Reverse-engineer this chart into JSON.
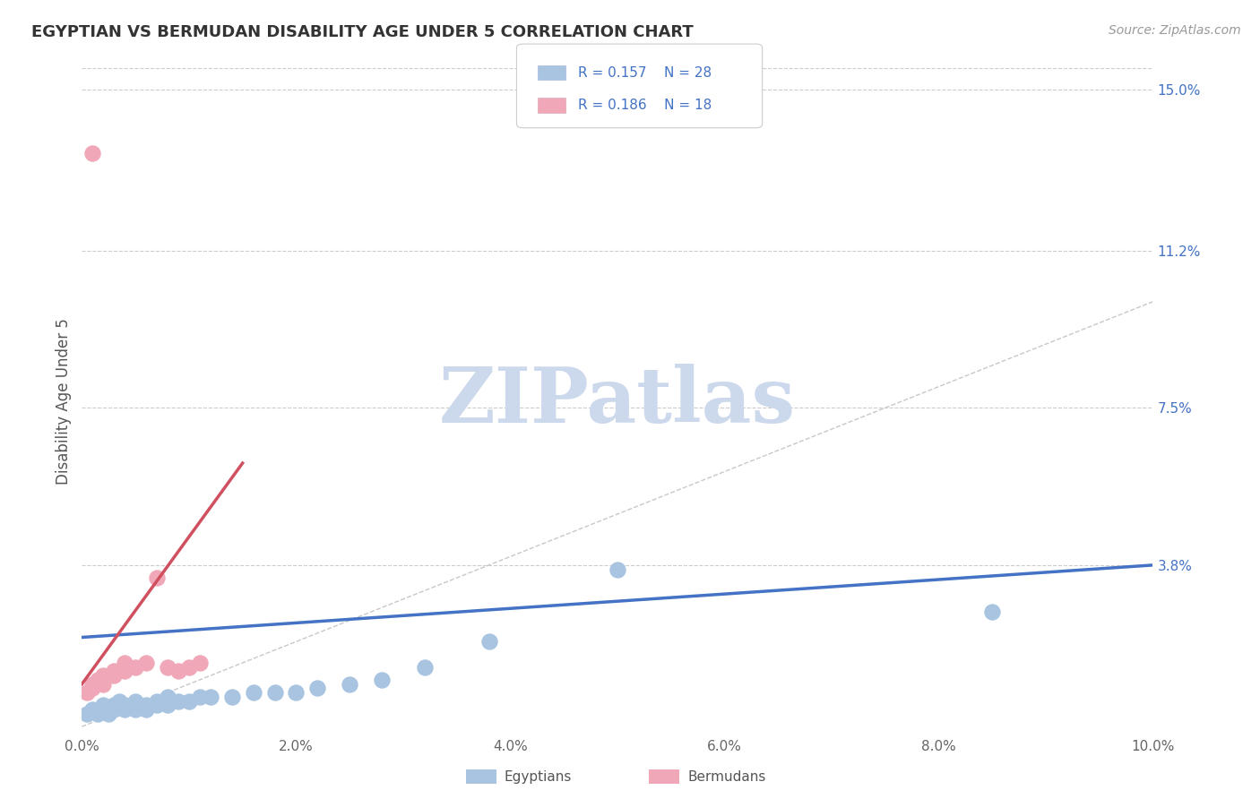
{
  "title": "EGYPTIAN VS BERMUDAN DISABILITY AGE UNDER 5 CORRELATION CHART",
  "source_text": "Source: ZipAtlas.com",
  "ylabel": "Disability Age Under 5",
  "xlim": [
    0.0,
    0.1
  ],
  "ylim": [
    -0.002,
    0.155
  ],
  "xticks": [
    0.0,
    0.02,
    0.04,
    0.06,
    0.08,
    0.1
  ],
  "xticklabels": [
    "0.0%",
    "2.0%",
    "4.0%",
    "6.0%",
    "8.0%",
    "10.0%"
  ],
  "ytick_positions": [
    0.038,
    0.075,
    0.112,
    0.15
  ],
  "ytick_labels": [
    "3.8%",
    "7.5%",
    "11.2%",
    "15.0%"
  ],
  "background_color": "#ffffff",
  "egyptian_color": "#a8c4e0",
  "bermudan_color": "#f0a8b8",
  "egyptian_line_color": "#4472c4",
  "bermudan_line_color": "#d05060",
  "diagonal_color": "#c8c8c8",
  "watermark_color": "#ccd8ec",
  "egyptians_x": [
    0.0005,
    0.001,
    0.0015,
    0.002,
    0.002,
    0.0025,
    0.003,
    0.003,
    0.0035,
    0.004,
    0.004,
    0.005,
    0.005,
    0.006,
    0.006,
    0.007,
    0.007,
    0.008,
    0.008,
    0.009,
    0.01,
    0.011,
    0.012,
    0.014,
    0.016,
    0.018,
    0.02,
    0.022,
    0.025,
    0.028,
    0.032,
    0.038,
    0.05,
    0.085
  ],
  "egyptians_y": [
    0.003,
    0.004,
    0.003,
    0.005,
    0.004,
    0.003,
    0.005,
    0.004,
    0.006,
    0.005,
    0.004,
    0.006,
    0.004,
    0.005,
    0.004,
    0.006,
    0.005,
    0.007,
    0.005,
    0.006,
    0.006,
    0.007,
    0.007,
    0.007,
    0.008,
    0.008,
    0.008,
    0.009,
    0.01,
    0.011,
    0.014,
    0.02,
    0.037,
    0.027
  ],
  "bermudans_x": [
    0.0005,
    0.001,
    0.001,
    0.0015,
    0.002,
    0.002,
    0.003,
    0.003,
    0.004,
    0.004,
    0.005,
    0.006,
    0.007,
    0.008,
    0.009,
    0.01,
    0.011,
    0.001
  ],
  "bermudans_y": [
    0.008,
    0.009,
    0.01,
    0.011,
    0.01,
    0.012,
    0.012,
    0.013,
    0.013,
    0.015,
    0.014,
    0.015,
    0.035,
    0.014,
    0.013,
    0.014,
    0.015,
    0.135
  ],
  "eg_trend_x0": 0.0,
  "eg_trend_y0": 0.021,
  "eg_trend_x1": 0.1,
  "eg_trend_y1": 0.038,
  "bm_trend_x0": 0.0,
  "bm_trend_y0": 0.01,
  "bm_trend_x1": 0.015,
  "bm_trend_y1": 0.062
}
